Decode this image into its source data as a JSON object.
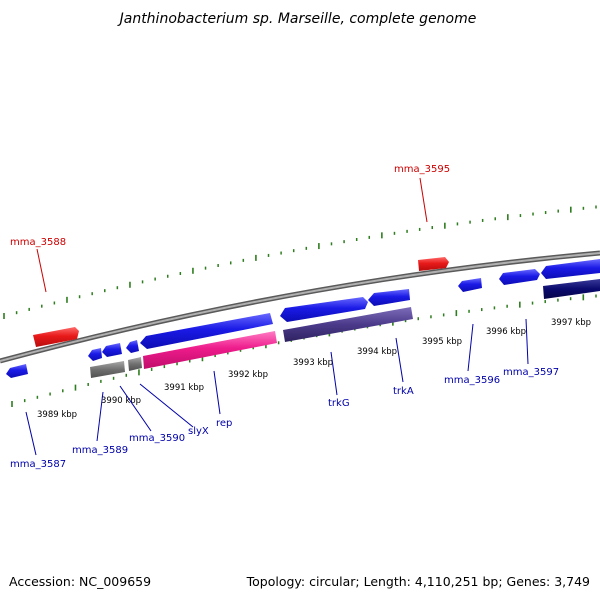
{
  "header": {
    "title": "Janthinobacterium sp. Marseille, complete genome"
  },
  "footer": {
    "accession": "Accession: NC_009659",
    "summary": "Topology: circular; Length: 4,110,251 bp; Genes: 3,749"
  },
  "colors": {
    "forward_gene": "#1a1ae6",
    "reverse_gene_dark": "#0a0a6e",
    "highlight_gene": "#e81a1a",
    "rep_gene": "#ee1c8c",
    "trk_gene": "#4b3a8a",
    "pseudo_gene": "#707070",
    "backbone": "#808080",
    "tick_marks": "#2e7d1e",
    "label_red": "#cc0000",
    "label_blue": "#0000aa"
  },
  "map": {
    "scale_ticks": [
      {
        "label": "3989 kbp"
      },
      {
        "label": "3990 kbp"
      },
      {
        "label": "3991 kbp"
      },
      {
        "label": "3992 kbp"
      },
      {
        "label": "3993 kbp"
      },
      {
        "label": "3994 kbp"
      },
      {
        "label": "3995 kbp"
      },
      {
        "label": "3996 kbp"
      },
      {
        "label": "3997 kbp"
      }
    ],
    "gene_labels": [
      {
        "text": "mma_3588",
        "color": "red"
      },
      {
        "text": "mma_3595",
        "color": "red"
      },
      {
        "text": "mma_3587",
        "color": "blue"
      },
      {
        "text": "mma_3589",
        "color": "blue"
      },
      {
        "text": "mma_3590",
        "color": "blue"
      },
      {
        "text": "slyX",
        "color": "blue"
      },
      {
        "text": "rep",
        "color": "blue"
      },
      {
        "text": "trkG",
        "color": "blue"
      },
      {
        "text": "trkA",
        "color": "blue"
      },
      {
        "text": "mma_3596",
        "color": "blue"
      },
      {
        "text": "mma_3597",
        "color": "blue"
      }
    ]
  }
}
